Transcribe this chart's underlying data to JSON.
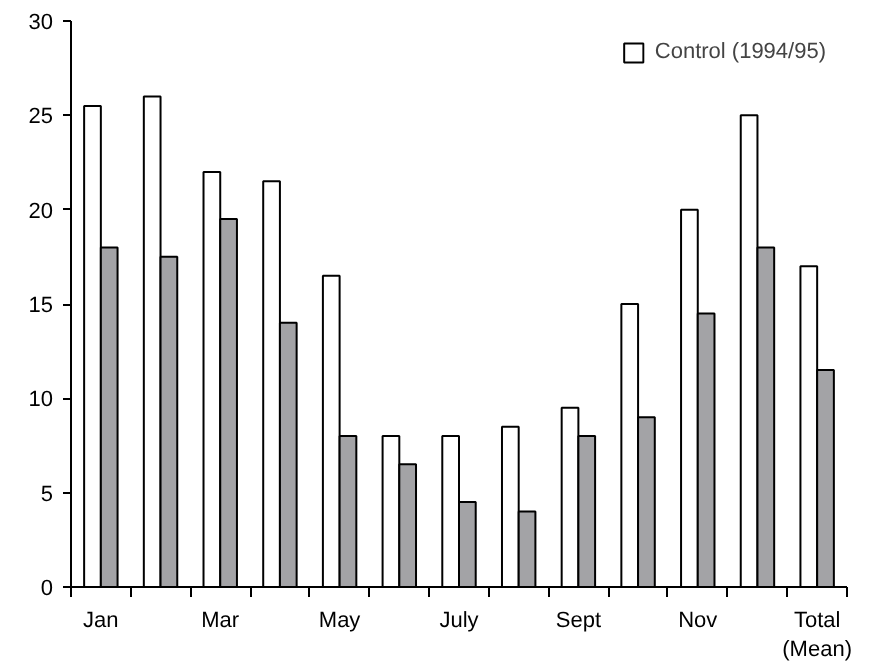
{
  "chart_data": {
    "type": "bar",
    "categories": [
      "Jan",
      null,
      "Mar",
      null,
      "May",
      null,
      "July",
      null,
      "Sept",
      null,
      "Nov",
      null,
      "Total\n(Mean)"
    ],
    "series": [
      {
        "name": "Control (1994/95)",
        "color": "#ffffff",
        "values": [
          25.5,
          26,
          22,
          21.5,
          16.5,
          8,
          8,
          8.5,
          9.5,
          15,
          20,
          25,
          17
        ]
      },
      {
        "color": "#a3a3a6",
        "values": [
          18,
          17.5,
          19.5,
          14,
          8,
          6.5,
          4.5,
          4,
          8,
          9,
          14.5,
          18,
          11.5
        ]
      }
    ],
    "ylim": [
      0,
      30
    ],
    "yticks": [
      0,
      5,
      10,
      15,
      20,
      25,
      30
    ],
    "grid": false,
    "legend": "top right"
  }
}
